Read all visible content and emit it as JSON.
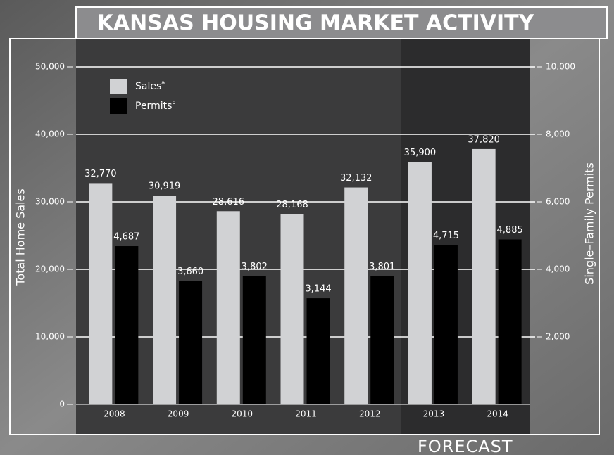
{
  "chart_data": {
    "type": "bar",
    "title": "KANSAS HOUSING MARKET ACTIVITY",
    "ylabel": "Total Home Sales",
    "y2label": "Single–Family Permits",
    "categories": [
      "2008",
      "2009",
      "2010",
      "2011",
      "2012",
      "2013",
      "2014"
    ],
    "series": [
      {
        "name": "Sales",
        "name_note": "a",
        "color": "#d1d2d4",
        "axis": "y",
        "values": [
          32770,
          30919,
          28616,
          28168,
          32132,
          35900,
          37820
        ],
        "value_labels": [
          "32,770",
          "30,919",
          "28,616",
          "28,168",
          "32,132",
          "35,900",
          "37,820"
        ]
      },
      {
        "name": "Permits",
        "name_note": "b",
        "color": "#000000",
        "axis": "y2",
        "values": [
          4687,
          3660,
          3802,
          3144,
          3801,
          4715,
          4885
        ],
        "value_labels": [
          "4,687",
          "3,660",
          "3,802",
          "3,144",
          "3,801",
          "4,715",
          "4,885"
        ]
      }
    ],
    "ylim": [
      0,
      50000
    ],
    "yticks": [
      0,
      {
        "value": 10000,
        "label": "10,000"
      },
      {
        "value": 20000,
        "label": "20,000"
      },
      {
        "value": 30000,
        "label": "30,000"
      },
      {
        "value": 40000,
        "label": "40,000"
      },
      {
        "value": 50000,
        "label": "50,000"
      }
    ],
    "y2lim": [
      0,
      10000
    ],
    "y2ticks": [
      {
        "value": 2000,
        "label": "2,000"
      },
      {
        "value": 4000,
        "label": "4,000"
      },
      {
        "value": 6000,
        "label": "6,000"
      },
      {
        "value": 8000,
        "label": "8,000"
      },
      {
        "value": 10000,
        "label": "10,000"
      }
    ],
    "grid": true,
    "legend": "upper left",
    "forecast": {
      "label": "FORECAST",
      "from": "2013",
      "to": "2014"
    }
  }
}
